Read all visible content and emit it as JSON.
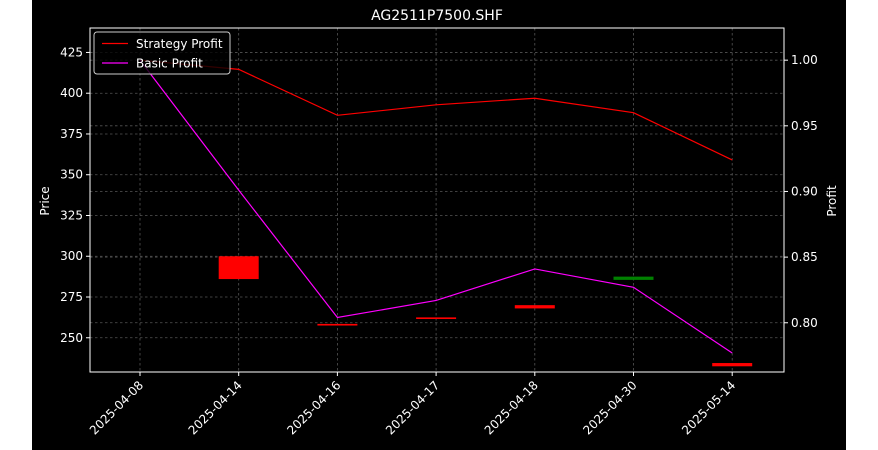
{
  "chart_data": {
    "type": "line",
    "title": "AG2511P7500.SHF",
    "ylabel": "Price",
    "y2label": "Profit",
    "x_categories": [
      "2025-04-08",
      "2025-04-14",
      "2025-04-16",
      "2025-04-17",
      "2025-04-18",
      "2025-04-30",
      "2025-05-14"
    ],
    "ylim": [
      229,
      440
    ],
    "y2lim": [
      0.7625,
      1.0245
    ],
    "yticks": [
      250,
      275,
      300,
      325,
      350,
      375,
      400,
      425
    ],
    "y2ticks": [
      0.8,
      0.85,
      0.9,
      0.95,
      1.0
    ],
    "y2tick_labels": [
      "0.80",
      "0.85",
      "0.90",
      "0.95",
      "1.00"
    ],
    "grid": true,
    "legend_position": "upper left",
    "series": [
      {
        "name": "Strategy Profit",
        "color": "#ff0000",
        "axis": "right",
        "values": [
          1.0,
          0.993,
          0.958,
          0.966,
          0.971,
          0.96,
          0.924
        ]
      },
      {
        "name": "Basic Profit",
        "color": "#ff00ff",
        "axis": "right",
        "values": [
          1.0,
          0.901,
          0.804,
          0.817,
          0.841,
          0.827,
          0.777
        ]
      }
    ],
    "candles": [
      {
        "x": "2025-04-14",
        "open": 300,
        "close": 286,
        "color": "#ff0000"
      },
      {
        "x": "2025-04-16",
        "open": 258.5,
        "close": 257.5,
        "color": "#ff0000"
      },
      {
        "x": "2025-04-17",
        "open": 262.5,
        "close": 261.5,
        "color": "#ff0000"
      },
      {
        "x": "2025-04-18",
        "open": 270,
        "close": 268,
        "color": "#ff0000"
      },
      {
        "x": "2025-04-30",
        "open": 285.5,
        "close": 287.5,
        "color": "#008000"
      },
      {
        "x": "2025-05-14",
        "open": 234.5,
        "close": 232.5,
        "color": "#ff0000"
      }
    ]
  }
}
